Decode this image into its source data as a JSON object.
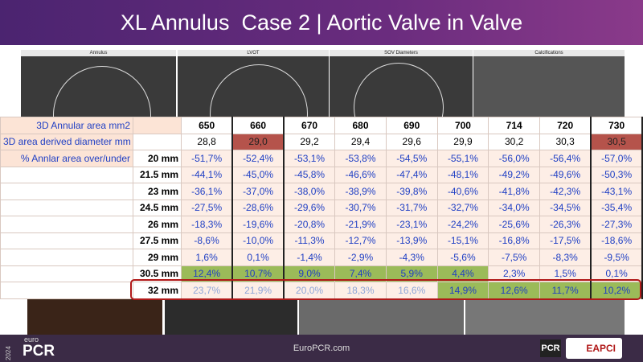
{
  "header": {
    "title": "XL Annulus  Case 2 | Aortic Valve in Valve"
  },
  "panels": [
    "Annulus",
    "LVOT",
    "SOV Diameters",
    "Calcifications"
  ],
  "table": {
    "area_label": "3D Annular area mm2",
    "areas": [
      "650",
      "660",
      "670",
      "680",
      "690",
      "700",
      "714",
      "720",
      "730"
    ],
    "diameter_label": "3D area derived diameter mm",
    "diameters": [
      "28,8",
      "29,0",
      "29,2",
      "29,4",
      "29,6",
      "29,9",
      "30,2",
      "30,3",
      "30,5"
    ],
    "overunder_label": "% Annlar area over/under",
    "rows": [
      {
        "size": "20 mm",
        "values": [
          "-51,7%",
          "-52,4%",
          "-53,1%",
          "-53,8%",
          "-54,5%",
          "-55,1%",
          "-56,0%",
          "-56,4%",
          "-57,0%"
        ]
      },
      {
        "size": "21.5 mm",
        "values": [
          "-44,1%",
          "-45,0%",
          "-45,8%",
          "-46,6%",
          "-47,4%",
          "-48,1%",
          "-49,2%",
          "-49,6%",
          "-50,3%"
        ]
      },
      {
        "size": "23 mm",
        "values": [
          "-36,1%",
          "-37,0%",
          "-38,0%",
          "-38,9%",
          "-39,8%",
          "-40,6%",
          "-41,8%",
          "-42,3%",
          "-43,1%"
        ]
      },
      {
        "size": "24.5 mm",
        "values": [
          "-27,5%",
          "-28,6%",
          "-29,6%",
          "-30,7%",
          "-31,7%",
          "-32,7%",
          "-34,0%",
          "-34,5%",
          "-35,4%"
        ]
      },
      {
        "size": "26 mm",
        "values": [
          "-18,3%",
          "-19,6%",
          "-20,8%",
          "-21,9%",
          "-23,1%",
          "-24,2%",
          "-25,6%",
          "-26,3%",
          "-27,3%"
        ]
      },
      {
        "size": "27.5 mm",
        "values": [
          "-8,6%",
          "-10,0%",
          "-11,3%",
          "-12,7%",
          "-13,9%",
          "-15,1%",
          "-16,8%",
          "-17,5%",
          "-18,6%"
        ]
      },
      {
        "size": "29 mm",
        "values": [
          "1,6%",
          "0,1%",
          "-1,4%",
          "-2,9%",
          "-4,3%",
          "-5,6%",
          "-7,5%",
          "-8,3%",
          "-9,5%"
        ]
      },
      {
        "size": "30.5 mm",
        "values": [
          "12,4%",
          "10,7%",
          "9,0%",
          "7,4%",
          "5,9%",
          "4,4%",
          "2,3%",
          "1,5%",
          "0,1%"
        ]
      },
      {
        "size": "32 mm",
        "values": [
          "23,7%",
          "21,9%",
          "20,0%",
          "18,3%",
          "16,6%",
          "14,9%",
          "12,6%",
          "11,7%",
          "10,2%"
        ]
      }
    ]
  },
  "footer": {
    "logo_year": "2024",
    "logo_euro": "euro",
    "logo_pcr": "PCR",
    "url": "EuroPCR.com",
    "partner_pcr": "PCR",
    "partner_eapci": "EAPCI"
  }
}
